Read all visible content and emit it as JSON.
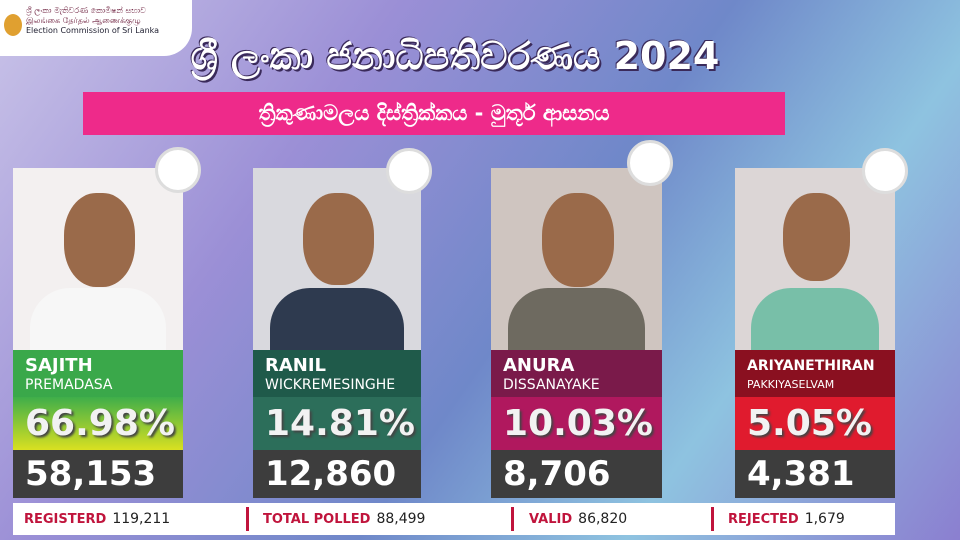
{
  "header": {
    "logo_lines": [
      "ශ්‍රී ලංකා මැතිවරණ කොමිෂන් සභාව",
      "இலங்கை தேர்தல் ஆணைக்குழு",
      "Election Commission of Sri Lanka"
    ],
    "title": "ශ්‍රී ලංකා ජනාධිපතිවරණය 2024",
    "subtitle": "ත්‍රිකුණාමලය දිස්ත්‍රික්කය - මුතූර් ආසනය"
  },
  "candidates": [
    {
      "first_name": "SAJITH",
      "last_name": "PREMADASA",
      "percent": "66.98%",
      "votes": "58,153"
    },
    {
      "first_name": "RANIL",
      "last_name": "WICKREMESINGHE",
      "percent": "14.81%",
      "votes": "12,860"
    },
    {
      "first_name": "ANURA",
      "last_name": "DISSANAYAKE",
      "percent": "10.03%",
      "votes": "8,706"
    },
    {
      "first_name": "ARIYANETHIRAN",
      "last_name": "PAKKIYASELVAM",
      "percent": "5.05%",
      "votes": "4,381"
    }
  ],
  "stats": [
    {
      "label": "REGISTERD",
      "value": "119,211"
    },
    {
      "label": "TOTAL POLLED",
      "value": "88,499"
    },
    {
      "label": "VALID",
      "value": "86,820"
    },
    {
      "label": "REJECTED",
      "value": "1,679"
    }
  ]
}
